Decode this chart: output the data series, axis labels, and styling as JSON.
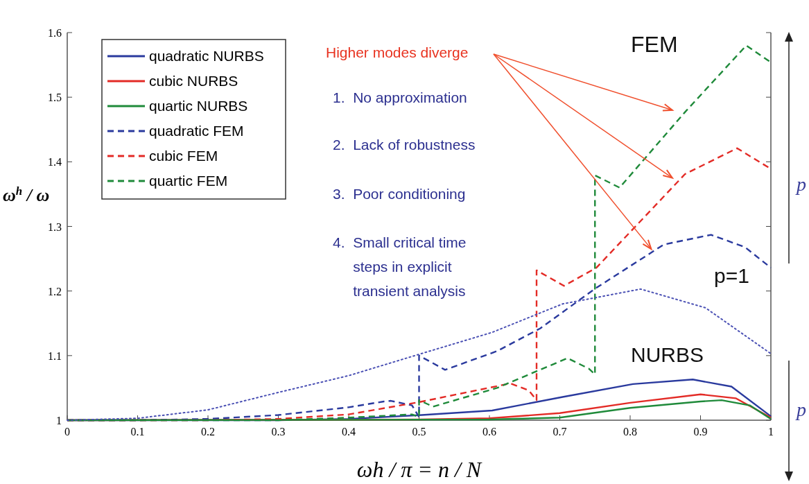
{
  "chart_data": {
    "type": "line",
    "xlabel": "ωh / π = n / N",
    "ylabel": "ω$^{h}$ / ω",
    "xlim": [
      0,
      1
    ],
    "ylim": [
      1,
      1.6
    ],
    "xticks": [
      0,
      0.1,
      0.2,
      0.3,
      0.4,
      0.5,
      0.6,
      0.7,
      0.8,
      0.9,
      1
    ],
    "yticks": [
      1,
      1.1,
      1.2,
      1.3,
      1.4,
      1.5,
      1.6
    ],
    "legend": "top left",
    "series": [
      {
        "name": "quadratic NURBS",
        "color": "#2a3a9e",
        "line_style": "solid",
        "x": [
          0,
          0.3,
          0.4,
          0.504,
          0.604,
          0.704,
          0.804,
          0.889,
          0.944,
          1
        ],
        "values": [
          1,
          1,
          1.002,
          1.008,
          1.015,
          1.036,
          1.056,
          1.063,
          1.052,
          1.006
        ]
      },
      {
        "name": "cubic NURBS",
        "color": "#e32b26",
        "line_style": "solid",
        "x": [
          0,
          0.5,
          0.6,
          0.7,
          0.8,
          0.9,
          0.95,
          1
        ],
        "values": [
          1,
          1.001,
          1.003,
          1.011,
          1.027,
          1.04,
          1.034,
          1.004
        ]
      },
      {
        "name": "quartic NURBS",
        "color": "#1f8a3a",
        "line_style": "solid",
        "x": [
          0,
          0.6,
          0.7,
          0.8,
          0.9,
          0.93,
          0.97,
          1
        ],
        "values": [
          1,
          1.001,
          1.004,
          1.019,
          1.029,
          1.031,
          1.023,
          1.002
        ]
      },
      {
        "name": "quadratic FEM",
        "color": "#2a3a9e",
        "line_style": "dashed",
        "x": [
          0,
          0.1,
          0.2,
          0.3,
          0.4,
          0.45,
          0.46,
          0.49,
          0.5,
          0.5,
          0.537,
          0.611,
          0.672,
          0.752,
          0.848,
          0.915,
          0.963,
          1
        ],
        "values": [
          1,
          1,
          1.002,
          1.008,
          1.02,
          1.029,
          1.03,
          1.023,
          1.005,
          1.1,
          1.078,
          1.107,
          1.142,
          1.205,
          1.272,
          1.287,
          1.268,
          1.236
        ]
      },
      {
        "name": "cubic FEM",
        "color": "#e32b26",
        "line_style": "dashed",
        "x": [
          0,
          0.2,
          0.3,
          0.4,
          0.5,
          0.63,
          0.656,
          0.667,
          0.667,
          0.706,
          0.752,
          0.878,
          0.952,
          1
        ],
        "values": [
          1,
          1,
          1.002,
          1.009,
          1.028,
          1.057,
          1.046,
          1.031,
          1.232,
          1.208,
          1.236,
          1.381,
          1.421,
          1.389
        ]
      },
      {
        "name": "quartic FEM",
        "color": "#1f8a3a",
        "line_style": "dashed",
        "x": [
          0,
          0.3,
          0.4,
          0.49,
          0.5,
          0.5,
          0.52,
          0.611,
          0.711,
          0.741,
          0.75,
          0.75,
          0.785,
          0.878,
          0.965,
          1
        ],
        "values": [
          1,
          1,
          1.004,
          1.009,
          1.005,
          1.031,
          1.021,
          1.05,
          1.096,
          1.08,
          1.071,
          1.379,
          1.36,
          1.477,
          1.58,
          1.554
        ]
      },
      {
        "color": "#4a50b4",
        "line_style": "dotted",
        "x": [
          0,
          0.1,
          0.2,
          0.3,
          0.4,
          0.5,
          0.604,
          0.704,
          0.815,
          0.907,
          1
        ],
        "values": [
          1,
          1.003,
          1.016,
          1.043,
          1.069,
          1.102,
          1.136,
          1.18,
          1.203,
          1.174,
          1.103
        ]
      }
    ],
    "annotations": [
      "FEM",
      "NURBS",
      "p=1",
      "Higher modes diverge",
      "1.  No approximation",
      "2.  Lack of robustness",
      "3.  Poor conditioning",
      "4.  Small critical time",
      "     steps in explicit",
      "     transient analysis",
      "p",
      "p"
    ]
  }
}
